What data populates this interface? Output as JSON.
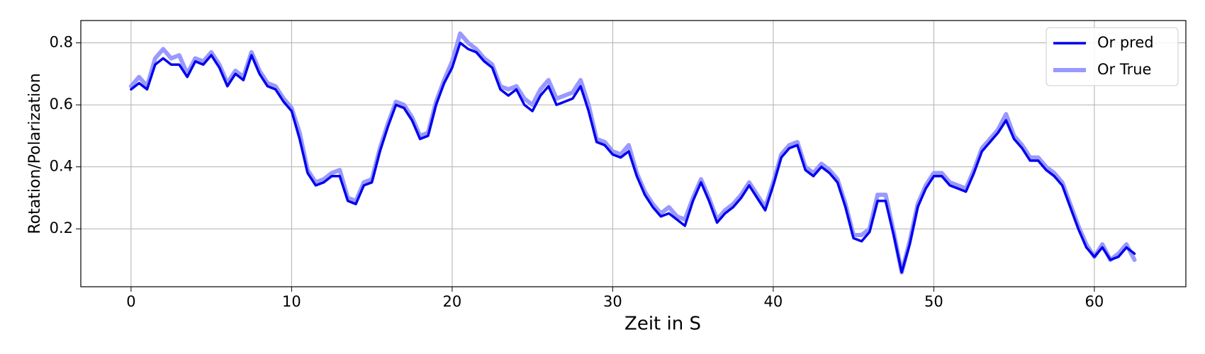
{
  "chart_data": {
    "type": "line",
    "xlabel": "Zeit in S",
    "ylabel": "Rotation/Polarization",
    "x": [
      0,
      0.5,
      1,
      1.5,
      2,
      2.5,
      3,
      3.5,
      4,
      4.5,
      5,
      5.5,
      6,
      6.5,
      7,
      7.5,
      8,
      8.5,
      9,
      9.5,
      10,
      10.5,
      11,
      11.5,
      12,
      12.5,
      13,
      13.5,
      14,
      14.5,
      15,
      15.5,
      16,
      16.5,
      17,
      17.5,
      18,
      18.5,
      19,
      19.5,
      20,
      20.5,
      21,
      21.5,
      22,
      22.5,
      23,
      23.5,
      24,
      24.5,
      25,
      25.5,
      26,
      26.5,
      27,
      27.5,
      28,
      28.5,
      29,
      29.5,
      30,
      30.5,
      31,
      31.5,
      32,
      32.5,
      33,
      33.5,
      34,
      34.5,
      35,
      35.5,
      36,
      36.5,
      37,
      37.5,
      38,
      38.5,
      39,
      39.5,
      40,
      40.5,
      41,
      41.5,
      42,
      42.5,
      43,
      43.5,
      44,
      44.5,
      45,
      45.5,
      46,
      46.5,
      47,
      47.5,
      48,
      48.5,
      49,
      49.5,
      50,
      50.5,
      51,
      51.5,
      52,
      52.5,
      53,
      53.5,
      54,
      54.5,
      55,
      55.5,
      56,
      56.5,
      57,
      57.5,
      58,
      58.5,
      59,
      59.5,
      60,
      60.5,
      61,
      61.5,
      62,
      62.5
    ],
    "series": [
      {
        "name": "Or pred",
        "color": "#0000ee",
        "values": [
          0.65,
          0.67,
          0.65,
          0.73,
          0.75,
          0.73,
          0.73,
          0.69,
          0.74,
          0.73,
          0.76,
          0.72,
          0.66,
          0.7,
          0.68,
          0.76,
          0.7,
          0.66,
          0.65,
          0.61,
          0.58,
          0.49,
          0.38,
          0.34,
          0.35,
          0.37,
          0.37,
          0.29,
          0.28,
          0.34,
          0.35,
          0.45,
          0.53,
          0.6,
          0.59,
          0.55,
          0.49,
          0.5,
          0.6,
          0.67,
          0.72,
          0.8,
          0.78,
          0.77,
          0.74,
          0.72,
          0.65,
          0.63,
          0.65,
          0.6,
          0.58,
          0.63,
          0.66,
          0.6,
          0.61,
          0.62,
          0.66,
          0.58,
          0.48,
          0.47,
          0.44,
          0.43,
          0.45,
          0.37,
          0.31,
          0.27,
          0.24,
          0.25,
          0.23,
          0.21,
          0.29,
          0.35,
          0.29,
          0.22,
          0.25,
          0.27,
          0.3,
          0.34,
          0.3,
          0.26,
          0.34,
          0.43,
          0.46,
          0.47,
          0.39,
          0.37,
          0.4,
          0.38,
          0.35,
          0.27,
          0.17,
          0.16,
          0.19,
          0.29,
          0.29,
          0.18,
          0.06,
          0.15,
          0.27,
          0.33,
          0.37,
          0.37,
          0.34,
          0.33,
          0.32,
          0.38,
          0.45,
          0.48,
          0.51,
          0.55,
          0.49,
          0.46,
          0.42,
          0.42,
          0.39,
          0.37,
          0.34,
          0.27,
          0.2,
          0.14,
          0.11,
          0.14,
          0.1,
          0.11,
          0.14,
          0.12
        ]
      },
      {
        "name": "Or True",
        "color": "#9999ff",
        "values": [
          0.66,
          0.69,
          0.66,
          0.75,
          0.78,
          0.75,
          0.76,
          0.7,
          0.75,
          0.74,
          0.77,
          0.73,
          0.67,
          0.71,
          0.69,
          0.77,
          0.71,
          0.67,
          0.66,
          0.62,
          0.59,
          0.51,
          0.39,
          0.35,
          0.36,
          0.38,
          0.39,
          0.3,
          0.29,
          0.35,
          0.36,
          0.46,
          0.54,
          0.61,
          0.6,
          0.56,
          0.5,
          0.51,
          0.61,
          0.68,
          0.74,
          0.83,
          0.8,
          0.78,
          0.75,
          0.73,
          0.66,
          0.65,
          0.66,
          0.62,
          0.6,
          0.65,
          0.68,
          0.62,
          0.63,
          0.64,
          0.68,
          0.6,
          0.49,
          0.48,
          0.45,
          0.44,
          0.47,
          0.38,
          0.32,
          0.28,
          0.25,
          0.27,
          0.24,
          0.23,
          0.3,
          0.36,
          0.3,
          0.23,
          0.26,
          0.28,
          0.31,
          0.35,
          0.31,
          0.27,
          0.35,
          0.44,
          0.47,
          0.48,
          0.4,
          0.38,
          0.41,
          0.39,
          0.36,
          0.28,
          0.18,
          0.18,
          0.2,
          0.31,
          0.31,
          0.19,
          0.06,
          0.16,
          0.28,
          0.34,
          0.38,
          0.38,
          0.35,
          0.34,
          0.33,
          0.39,
          0.46,
          0.49,
          0.52,
          0.57,
          0.5,
          0.47,
          0.43,
          0.43,
          0.4,
          0.38,
          0.35,
          0.28,
          0.21,
          0.15,
          0.11,
          0.15,
          0.1,
          0.12,
          0.15,
          0.1
        ]
      }
    ],
    "xlim": [
      -3.13,
      65.7
    ],
    "ylim": [
      0.0133,
      0.872
    ],
    "xticks": [
      0,
      10,
      20,
      30,
      40,
      50,
      60
    ],
    "yticks": [
      0.2,
      0.4,
      0.6,
      0.8
    ],
    "grid": true,
    "legend": "upper right"
  }
}
